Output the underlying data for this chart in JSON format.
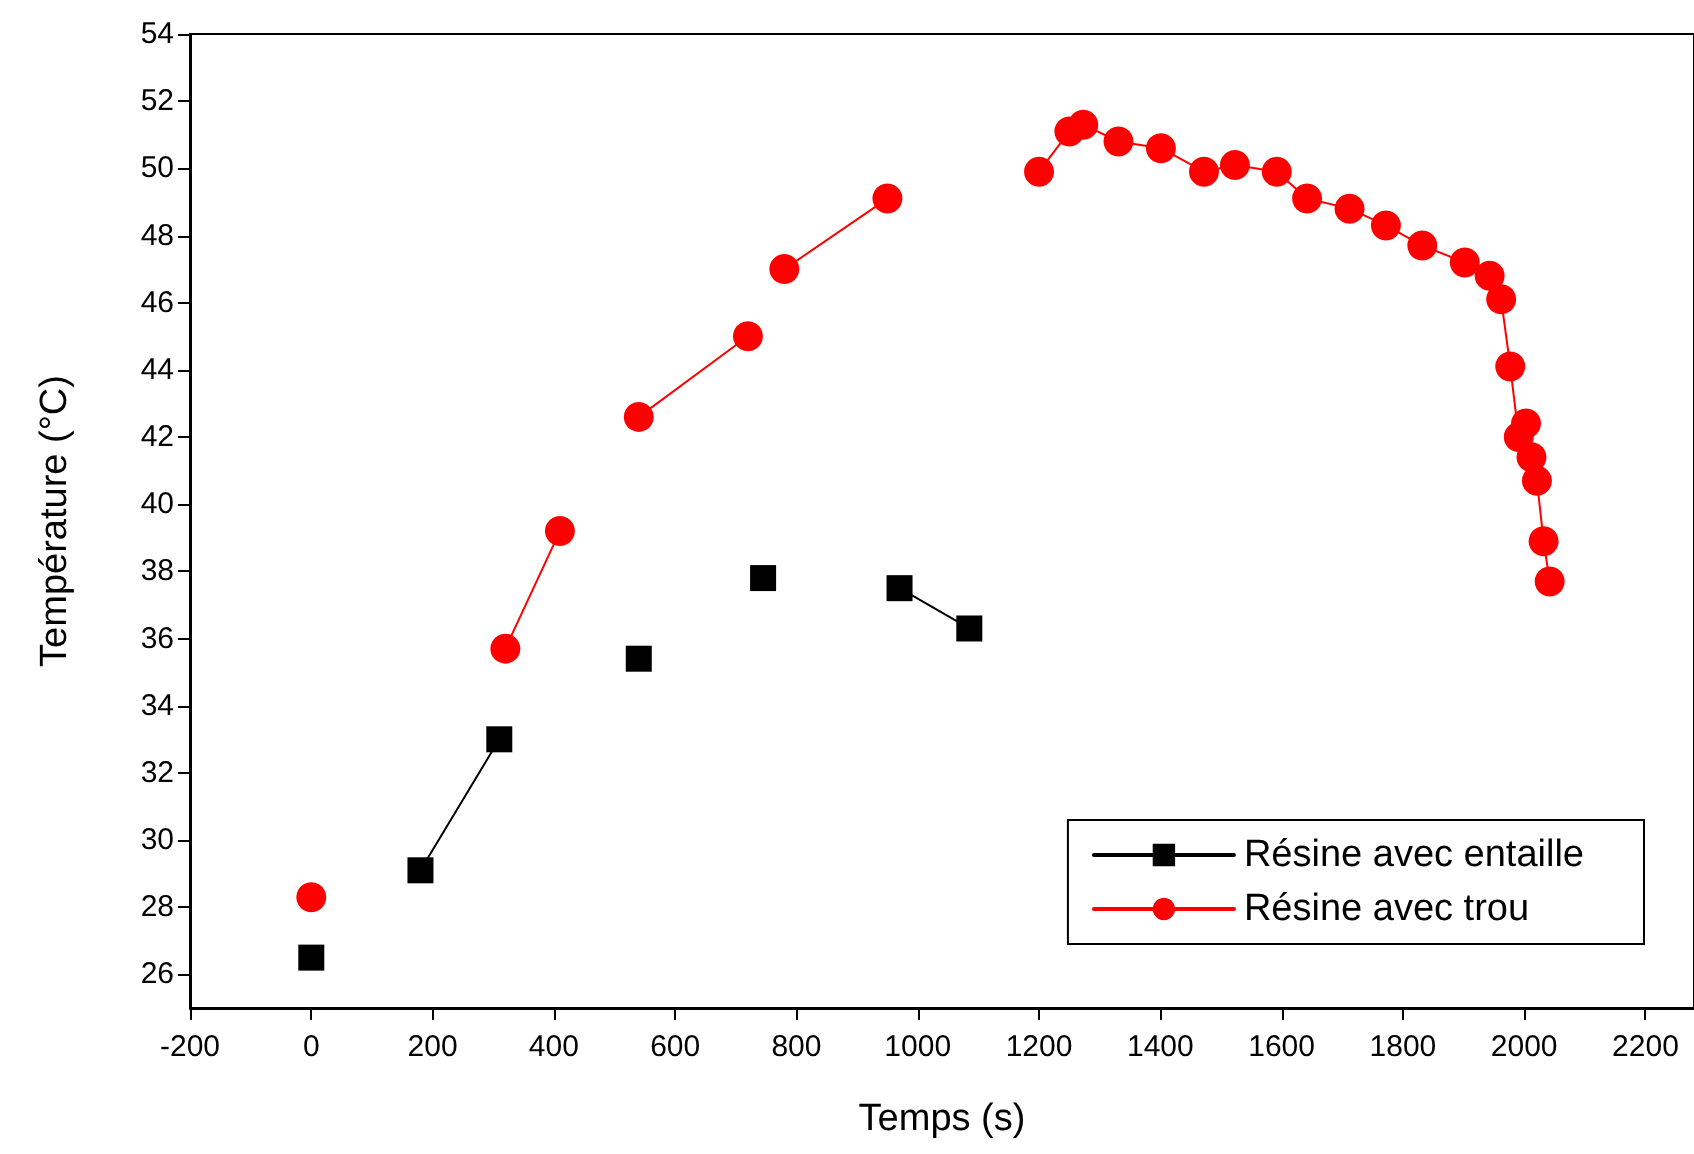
{
  "chart_data": {
    "type": "line",
    "xlabel": "Temps (s)",
    "ylabel": "Température (°C)",
    "xlim": [
      -200,
      2280
    ],
    "xticks": [
      -200,
      0,
      200,
      400,
      600,
      800,
      1000,
      1200,
      1400,
      1600,
      1800,
      2000,
      2200
    ],
    "ylim": [
      25,
      54
    ],
    "yticks": [
      26,
      28,
      30,
      32,
      34,
      36,
      38,
      40,
      42,
      44,
      46,
      48,
      50,
      52,
      54
    ],
    "grid": false,
    "legend": "bottom right",
    "line_style": "solid",
    "series": [
      {
        "name": "Résine avec entaille",
        "color": "#000000",
        "marker": "square",
        "x": [
          0,
          90,
          180,
          310,
          420,
          540,
          640,
          745,
          860,
          970,
          1085
        ],
        "values": [
          26.5,
          null,
          29.1,
          33.0,
          null,
          35.4,
          null,
          37.8,
          null,
          37.5,
          36.3
        ]
      },
      {
        "name": "Résine avec trou",
        "color": "#ff0000",
        "marker": "circle",
        "x": [
          0,
          160,
          320,
          410,
          470,
          540,
          720,
          750,
          780,
          950,
          1075,
          1200,
          1250,
          1273,
          1331,
          1401,
          1472,
          1523,
          1592,
          1642,
          1712,
          1772,
          1832,
          1902,
          1943,
          1962,
          1977,
          1991,
          2003,
          2012,
          2021,
          2032,
          2042
        ],
        "values": [
          28.3,
          null,
          35.7,
          39.2,
          null,
          42.6,
          45.0,
          null,
          47.0,
          49.1,
          null,
          49.9,
          51.1,
          51.3,
          50.8,
          50.6,
          49.9,
          50.1,
          49.9,
          49.1,
          48.8,
          48.3,
          47.7,
          47.2,
          46.8,
          46.1,
          44.1,
          42.0,
          42.4,
          41.4,
          40.7,
          38.9,
          37.7
        ]
      }
    ]
  }
}
